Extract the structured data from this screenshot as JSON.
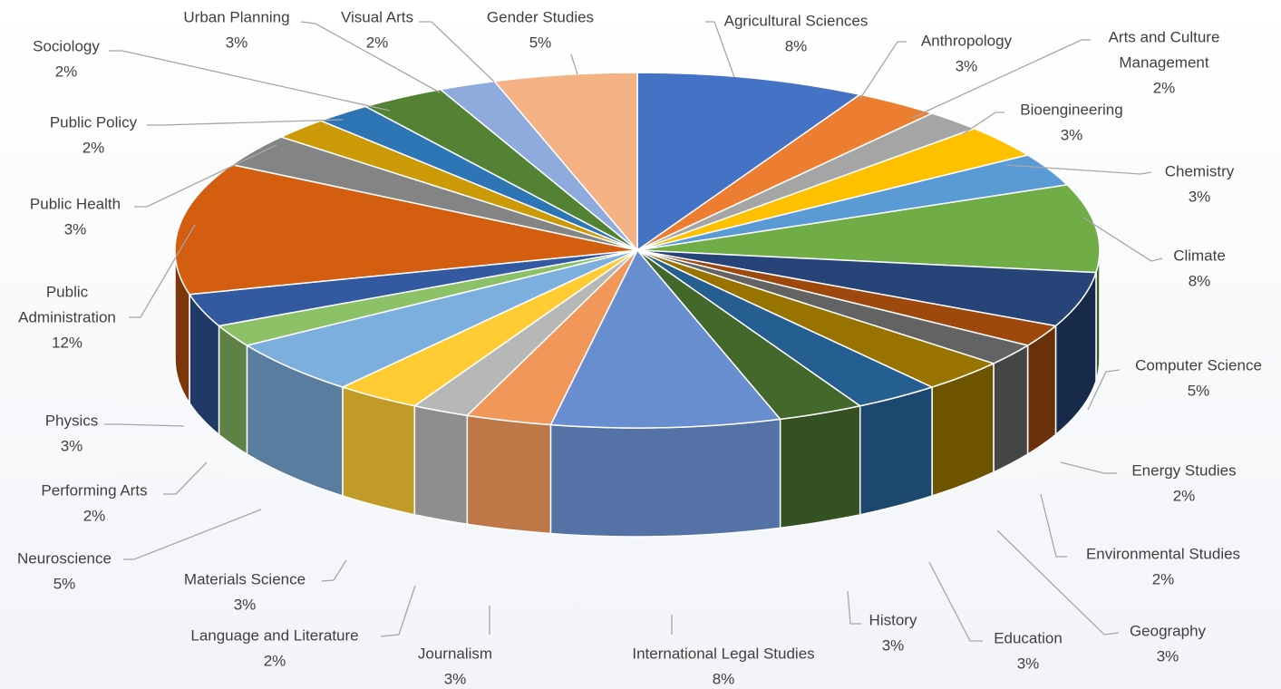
{
  "chart_data": {
    "type": "pie",
    "variant": "3d",
    "legend": "none",
    "title": "",
    "slices": [
      {
        "label": "Agricultural Sciences",
        "pct_text": "8%",
        "value": 8,
        "color": "#4472C4"
      },
      {
        "label": "Anthropology",
        "pct_text": "3%",
        "value": 3,
        "color": "#ED7D31"
      },
      {
        "label": "Arts and Culture Management",
        "label_lines": [
          "Arts and Culture",
          "Management"
        ],
        "pct_text": "2%",
        "value": 2,
        "color": "#A5A5A5"
      },
      {
        "label": "Bioengineering",
        "pct_text": "3%",
        "value": 3,
        "color": "#FFC000"
      },
      {
        "label": "Chemistry",
        "pct_text": "3%",
        "value": 3,
        "color": "#5B9BD5"
      },
      {
        "label": "Climate",
        "pct_text": "8%",
        "value": 8,
        "color": "#70AD47"
      },
      {
        "label": "Computer Science",
        "pct_text": "5%",
        "value": 5,
        "color": "#264478"
      },
      {
        "label": "Energy Studies",
        "pct_text": "2%",
        "value": 2,
        "color": "#9E480E"
      },
      {
        "label": "Environmental Studies",
        "pct_text": "2%",
        "value": 2,
        "color": "#636363"
      },
      {
        "label": "Geography",
        "pct_text": "3%",
        "value": 3,
        "color": "#997300"
      },
      {
        "label": "Education",
        "pct_text": "3%",
        "value": 3,
        "color": "#255E91"
      },
      {
        "label": "History",
        "pct_text": "3%",
        "value": 3,
        "color": "#43682B"
      },
      {
        "label": "International Legal Studies",
        "pct_text": "8%",
        "value": 8,
        "color": "#698ED0"
      },
      {
        "label": "Journalism",
        "pct_text": "3%",
        "value": 3,
        "color": "#F1975A"
      },
      {
        "label": "Language and Literature",
        "pct_text": "2%",
        "value": 2,
        "color": "#B7B7B7"
      },
      {
        "label": "Materials Science",
        "pct_text": "3%",
        "value": 3,
        "color": "#FFCD33"
      },
      {
        "label": "Neuroscience",
        "pct_text": "5%",
        "value": 5,
        "color": "#7CAFDD"
      },
      {
        "label": "Performing Arts",
        "pct_text": "2%",
        "value": 2,
        "color": "#8CC168"
      },
      {
        "label": "Physics",
        "pct_text": "3%",
        "value": 3,
        "color": "#335AA1"
      },
      {
        "label": "Public Administration",
        "label_lines": [
          "Public",
          "Administration"
        ],
        "pct_text": "12%",
        "value": 12,
        "color": "#D35E10"
      },
      {
        "label": "Public Health",
        "pct_text": "3%",
        "value": 3,
        "color": "#848484"
      },
      {
        "label": "Public Policy",
        "pct_text": "2%",
        "value": 2,
        "color": "#CC9A06"
      },
      {
        "label": "Sociology",
        "pct_text": "2%",
        "value": 2,
        "color": "#2E75B6"
      },
      {
        "label": "Urban Planning",
        "pct_text": "3%",
        "value": 3,
        "color": "#548235"
      },
      {
        "label": "Visual Arts",
        "pct_text": "2%",
        "value": 2,
        "color": "#8FAADC"
      },
      {
        "label": "Gender Studies",
        "pct_text": "5%",
        "value": 5,
        "color": "#F4B183"
      }
    ]
  }
}
